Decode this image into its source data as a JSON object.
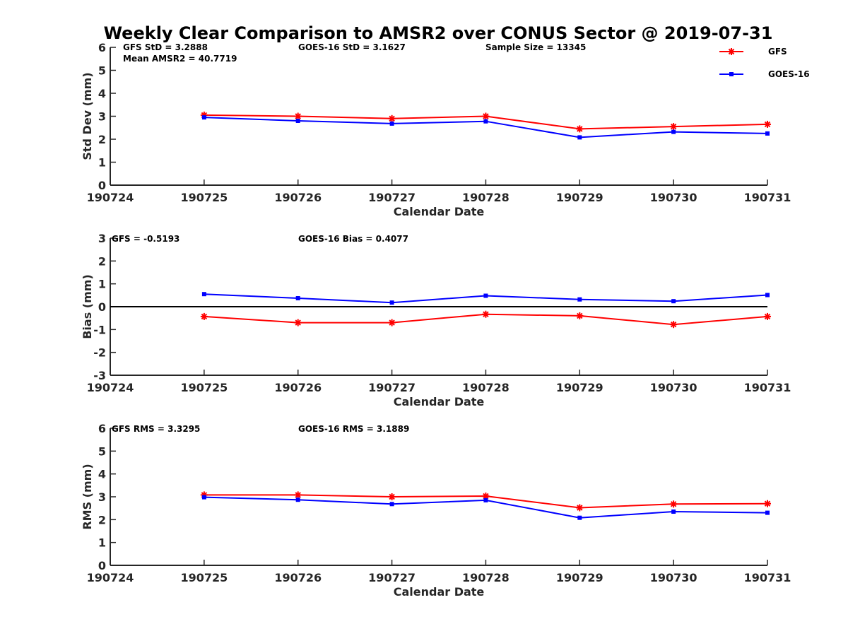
{
  "title": "Weekly Clear Comparison to AMSR2 over CONUS Sector @ 2019-07-31",
  "colors": {
    "gfs": "#ff0000",
    "goes": "#0000ff",
    "axis": "#262626",
    "zero_line": "#000000"
  },
  "legend": {
    "placement": "top-right",
    "entries": [
      {
        "name": "GFS",
        "color": "#ff0000",
        "marker": "asterisk"
      },
      {
        "name": "GOES-16",
        "color": "#0000ff",
        "marker": "square"
      }
    ]
  },
  "chart_data": [
    {
      "type": "line",
      "xlabel": "Calendar Date",
      "ylabel": "Std Dev (mm)",
      "x_ticks": [
        "190724",
        "190725",
        "190726",
        "190727",
        "190728",
        "190729",
        "190730",
        "190731"
      ],
      "x": [
        "190725",
        "190726",
        "190727",
        "190728",
        "190729",
        "190730",
        "190731"
      ],
      "ylim": [
        0,
        6
      ],
      "y_ticks": [
        0,
        1,
        2,
        3,
        4,
        5,
        6
      ],
      "zero_line": false,
      "annotations": [
        "GFS StD = 3.2888",
        "Mean AMSR2 = 40.7719",
        "GOES-16 StD = 3.1627",
        "Sample Size = 13345"
      ],
      "series": [
        {
          "name": "GFS",
          "values": [
            3.05,
            3.0,
            2.9,
            3.0,
            2.45,
            2.55,
            2.65
          ]
        },
        {
          "name": "GOES-16",
          "values": [
            2.95,
            2.8,
            2.68,
            2.78,
            2.08,
            2.32,
            2.25
          ]
        }
      ]
    },
    {
      "type": "line",
      "xlabel": "Calendar Date",
      "ylabel": "Bias (mm)",
      "x_ticks": [
        "190724",
        "190725",
        "190726",
        "190727",
        "190728",
        "190729",
        "190730",
        "190731"
      ],
      "x": [
        "190725",
        "190726",
        "190727",
        "190728",
        "190729",
        "190730",
        "190731"
      ],
      "ylim": [
        -3,
        3
      ],
      "y_ticks": [
        -3,
        -2,
        -1,
        0,
        1,
        2,
        3
      ],
      "zero_line": true,
      "annotations": [
        "GFS = -0.5193",
        "GOES-16 Bias  = 0.4077"
      ],
      "series": [
        {
          "name": "GFS",
          "values": [
            -0.43,
            -0.7,
            -0.7,
            -0.33,
            -0.4,
            -0.78,
            -0.43
          ]
        },
        {
          "name": "GOES-16",
          "values": [
            0.55,
            0.37,
            0.18,
            0.48,
            0.32,
            0.24,
            0.51
          ]
        }
      ]
    },
    {
      "type": "line",
      "xlabel": "Calendar Date",
      "ylabel": "RMS (mm)",
      "x_ticks": [
        "190724",
        "190725",
        "190726",
        "190727",
        "190728",
        "190729",
        "190730",
        "190731"
      ],
      "x": [
        "190725",
        "190726",
        "190727",
        "190728",
        "190729",
        "190730",
        "190731"
      ],
      "ylim": [
        0,
        6
      ],
      "y_ticks": [
        0,
        1,
        2,
        3,
        4,
        5,
        6
      ],
      "zero_line": false,
      "annotations": [
        "GFS RMS = 3.3295",
        "GOES-16 RMS = 3.1889"
      ],
      "series": [
        {
          "name": "GFS",
          "values": [
            3.08,
            3.08,
            3.0,
            3.03,
            2.52,
            2.68,
            2.7
          ]
        },
        {
          "name": "GOES-16",
          "values": [
            2.98,
            2.87,
            2.68,
            2.85,
            2.08,
            2.35,
            2.3
          ]
        }
      ]
    }
  ]
}
